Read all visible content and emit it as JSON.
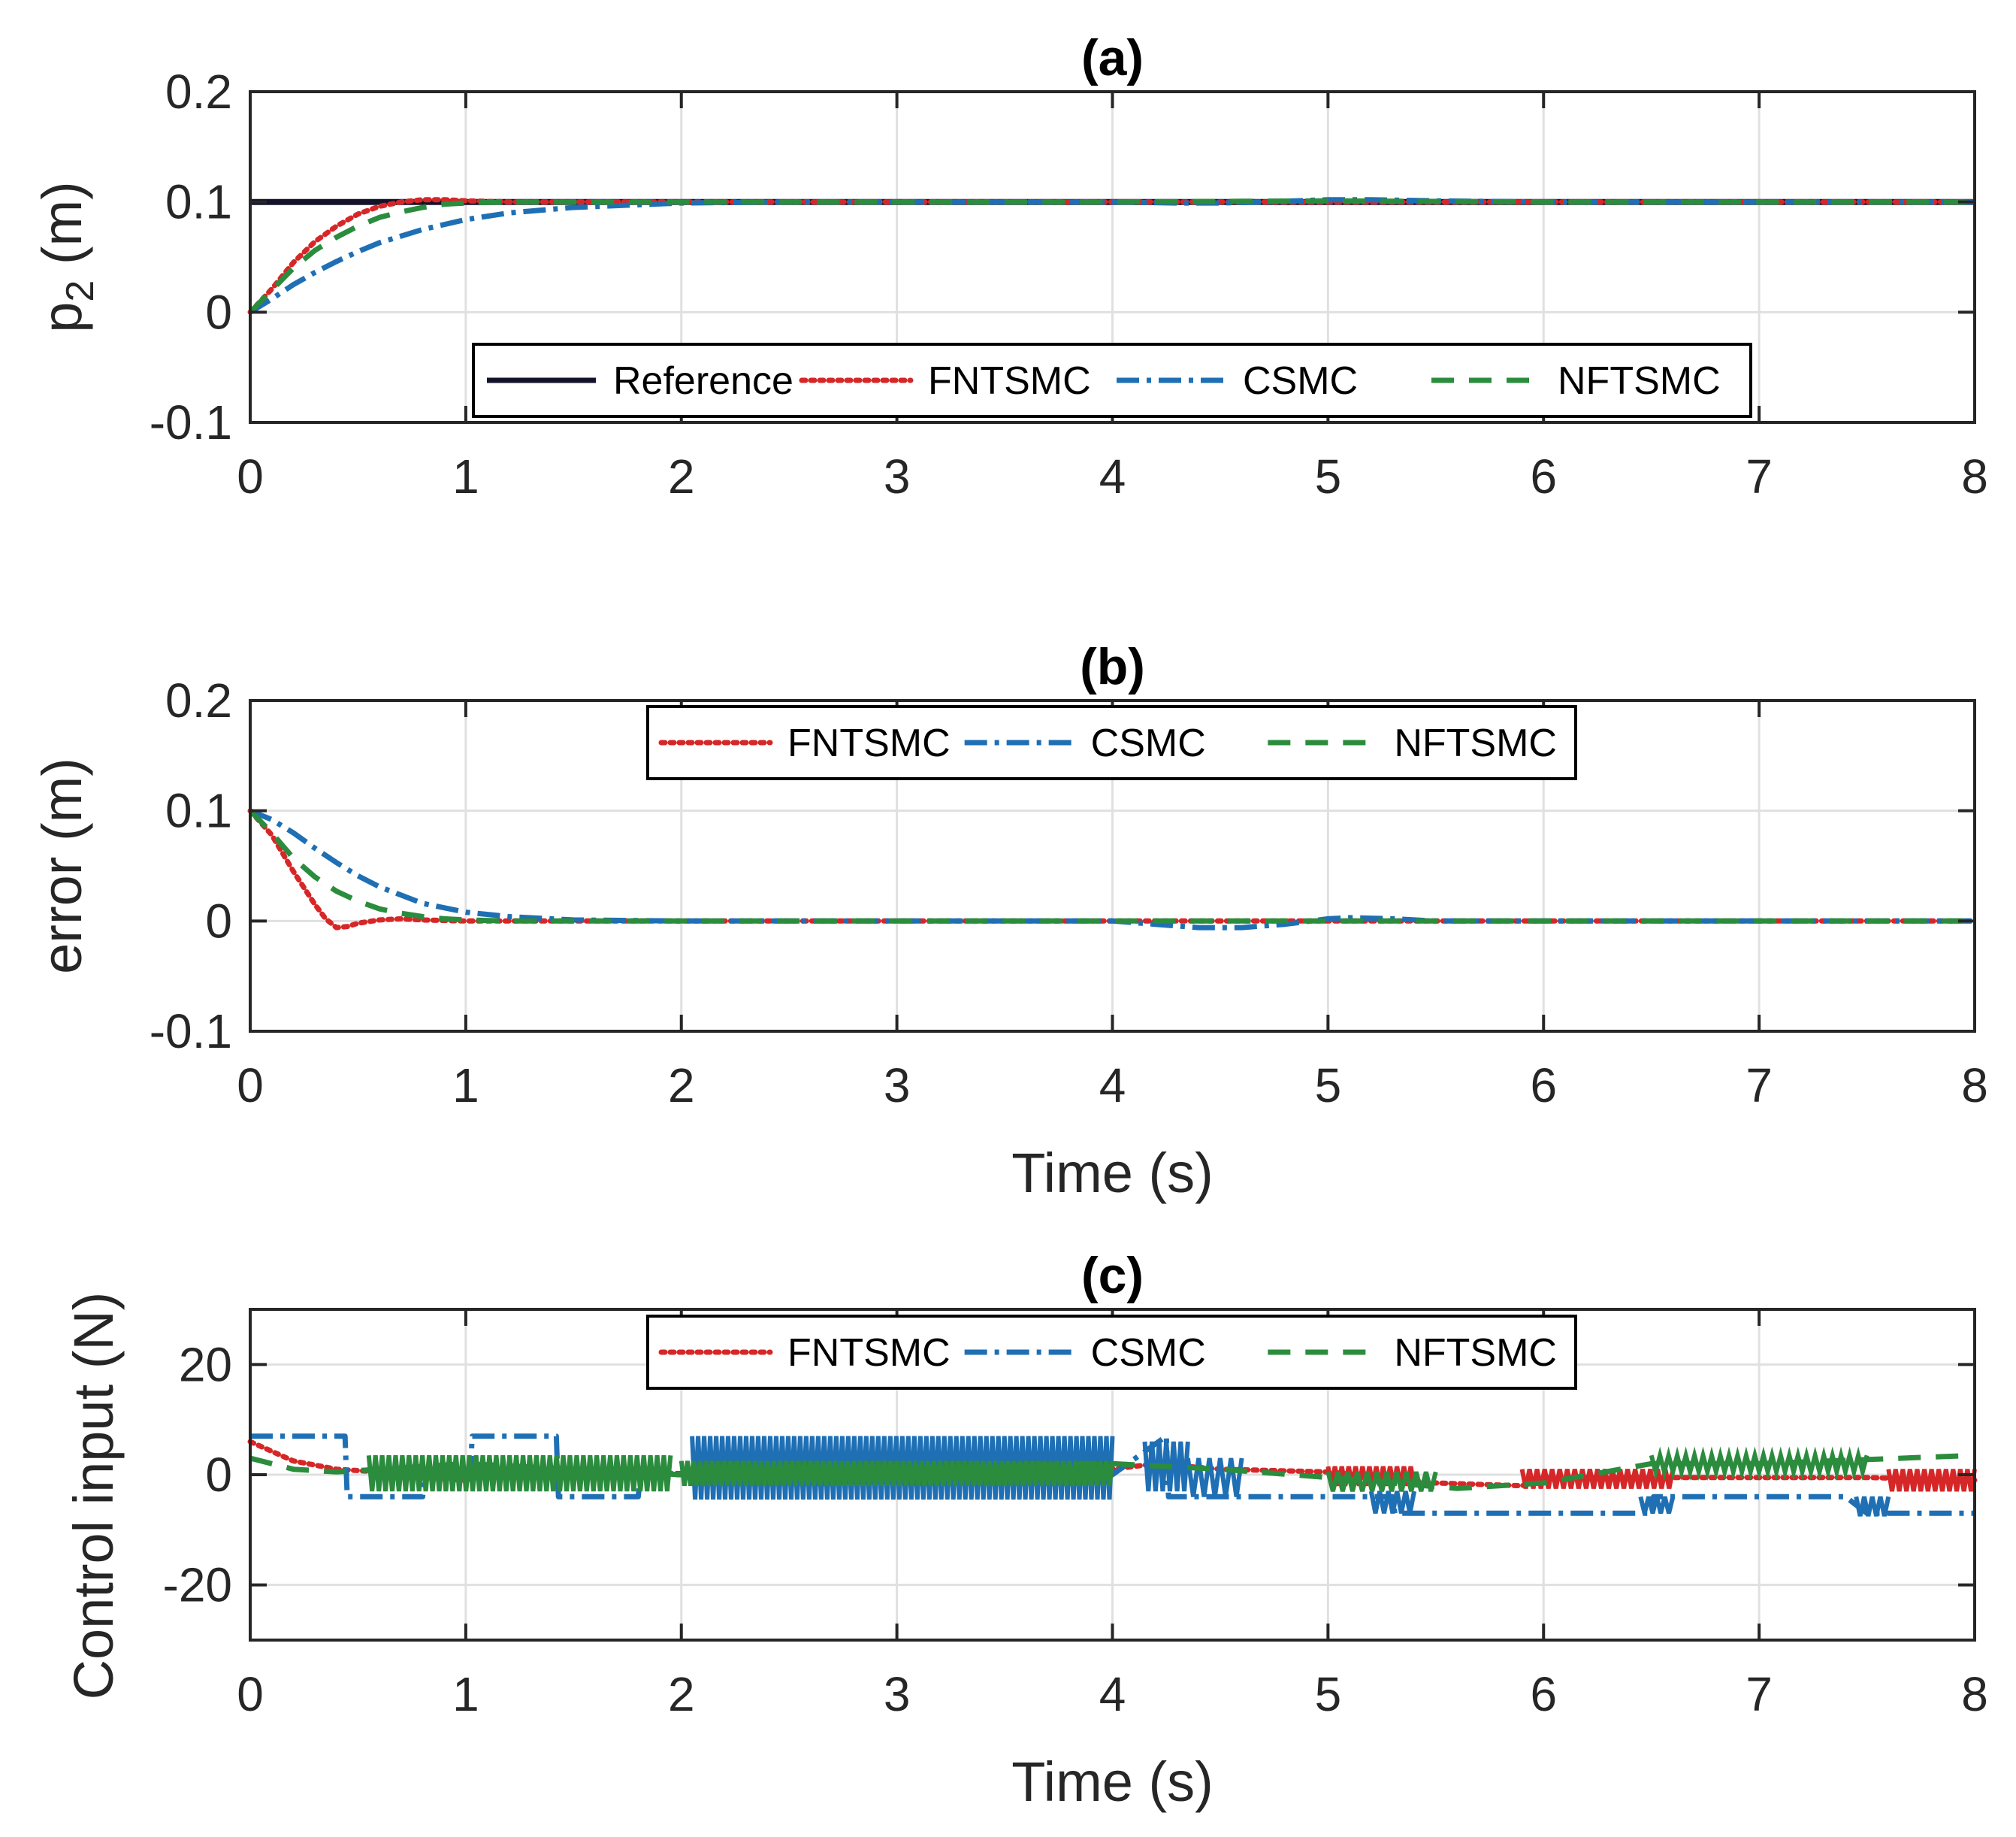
{
  "colors": {
    "reference": "#12122a",
    "fntsmc": "#d62728",
    "csmc": "#1f6fb4",
    "nftsmc": "#2b8c3e",
    "grid": "#e0e0e0",
    "axis": "#262626"
  },
  "chart_data": [
    {
      "type": "line",
      "title": "(a)",
      "xlabel": "",
      "ylabel": "p₂ (m)",
      "ylabel_base": "p",
      "ylabel_sub": "2",
      "ylabel_unit": " (m)",
      "xlim": [
        0,
        8
      ],
      "ylim": [
        -0.1,
        0.2
      ],
      "xticks": [
        0,
        1,
        2,
        3,
        4,
        5,
        6,
        7,
        8
      ],
      "xtick_labels": [
        "0",
        "1",
        "2",
        "3",
        "4",
        "5",
        "6",
        "7",
        "8"
      ],
      "yticks": [
        -0.1,
        0,
        0.1,
        0.2
      ],
      "ytick_labels": [
        "-0.1",
        "0",
        "0.1",
        "0.2"
      ],
      "grid": true,
      "legend": {
        "placement": "bottom-center",
        "entries": [
          "Reference",
          "FNTSMC",
          "CSMC",
          "NFTSMC"
        ]
      },
      "series": [
        {
          "name": "Reference",
          "style": "solid",
          "x": [
            0,
            8
          ],
          "y": [
            0.1,
            0.1
          ]
        },
        {
          "name": "FNTSMC",
          "style": "dotted",
          "x": [
            0,
            0.1,
            0.2,
            0.3,
            0.4,
            0.5,
            0.6,
            0.7,
            0.8,
            0.9,
            1.0,
            1.2,
            1.5,
            2,
            3,
            4,
            5,
            6,
            7,
            8
          ],
          "y": [
            0,
            0.021,
            0.045,
            0.064,
            0.078,
            0.089,
            0.096,
            0.1,
            0.102,
            0.102,
            0.101,
            0.1,
            0.1,
            0.1,
            0.1,
            0.1,
            0.1,
            0.1,
            0.1,
            0.1
          ]
        },
        {
          "name": "CSMC",
          "style": "dashdot",
          "x": [
            0,
            0.1,
            0.2,
            0.3,
            0.4,
            0.5,
            0.6,
            0.8,
            1.0,
            1.2,
            1.5,
            2.0,
            2.5,
            3,
            4,
            4.3,
            4.5,
            4.7,
            5.0,
            5.2,
            5.5,
            6,
            7,
            8
          ],
          "y": [
            0,
            0.012,
            0.025,
            0.036,
            0.046,
            0.055,
            0.063,
            0.075,
            0.084,
            0.09,
            0.095,
            0.099,
            0.1,
            0.1,
            0.1,
            0.099,
            0.099,
            0.1,
            0.102,
            0.102,
            0.101,
            0.1,
            0.1,
            0.1
          ]
        },
        {
          "name": "NFTSMC",
          "style": "dashed",
          "x": [
            0,
            0.1,
            0.2,
            0.3,
            0.4,
            0.5,
            0.6,
            0.7,
            0.8,
            0.9,
            1.0,
            1.2,
            1.5,
            2,
            3,
            4,
            5,
            6,
            7,
            8
          ],
          "y": [
            0,
            0.02,
            0.04,
            0.056,
            0.068,
            0.078,
            0.086,
            0.091,
            0.095,
            0.098,
            0.099,
            0.1,
            0.1,
            0.1,
            0.1,
            0.1,
            0.101,
            0.1,
            0.1,
            0.1
          ]
        }
      ]
    },
    {
      "type": "line",
      "title": "(b)",
      "xlabel": "Time (s)",
      "ylabel": "error (m)",
      "xlim": [
        0,
        8
      ],
      "ylim": [
        -0.1,
        0.2
      ],
      "xticks": [
        0,
        1,
        2,
        3,
        4,
        5,
        6,
        7,
        8
      ],
      "xtick_labels": [
        "0",
        "1",
        "2",
        "3",
        "4",
        "5",
        "6",
        "7",
        "8"
      ],
      "yticks": [
        -0.1,
        0,
        0.1,
        0.2
      ],
      "ytick_labels": [
        "-0.1",
        "0",
        "0.1",
        "0.2"
      ],
      "grid": true,
      "legend": {
        "placement": "top-center",
        "entries": [
          "FNTSMC",
          "CSMC",
          "NFTSMC"
        ]
      },
      "series": [
        {
          "name": "FNTSMC",
          "style": "dotted",
          "x": [
            0,
            0.1,
            0.2,
            0.3,
            0.35,
            0.4,
            0.45,
            0.5,
            0.6,
            0.7,
            0.8,
            1.0,
            1.5,
            2,
            3,
            4,
            5,
            6,
            7,
            8
          ],
          "y": [
            0.1,
            0.078,
            0.045,
            0.015,
            0.002,
            -0.006,
            -0.005,
            -0.002,
            0.001,
            0.002,
            0.001,
            0,
            0,
            0,
            0,
            0,
            0,
            0,
            0,
            0
          ]
        },
        {
          "name": "CSMC",
          "style": "dashdot",
          "x": [
            0,
            0.1,
            0.2,
            0.3,
            0.4,
            0.5,
            0.6,
            0.8,
            1.0,
            1.2,
            1.5,
            2.0,
            3,
            4.0,
            4.2,
            4.4,
            4.6,
            4.8,
            5.0,
            5.1,
            5.3,
            5.5,
            6,
            7,
            8
          ],
          "y": [
            0.1,
            0.092,
            0.08,
            0.066,
            0.053,
            0.041,
            0.031,
            0.016,
            0.008,
            0.004,
            0.001,
            0,
            0,
            0,
            -0.003,
            -0.006,
            -0.006,
            -0.003,
            0.002,
            0.003,
            0.002,
            0,
            0,
            0,
            0
          ]
        },
        {
          "name": "NFTSMC",
          "style": "dashed",
          "x": [
            0,
            0.1,
            0.2,
            0.3,
            0.4,
            0.5,
            0.6,
            0.7,
            0.8,
            0.9,
            1.0,
            1.2,
            1.5,
            2,
            3,
            4,
            5,
            6,
            7,
            8
          ],
          "y": [
            0.1,
            0.08,
            0.057,
            0.04,
            0.027,
            0.018,
            0.011,
            0.007,
            0.004,
            0.002,
            0.001,
            0,
            0,
            0,
            0,
            0,
            0,
            0,
            0,
            0
          ]
        }
      ]
    },
    {
      "type": "line",
      "title": "(c)",
      "xlabel": "Time (s)",
      "ylabel": "Control input (N)",
      "xlim": [
        0,
        8
      ],
      "ylim": [
        -30,
        30
      ],
      "xticks": [
        0,
        1,
        2,
        3,
        4,
        5,
        6,
        7,
        8
      ],
      "xtick_labels": [
        "0",
        "1",
        "2",
        "3",
        "4",
        "5",
        "6",
        "7",
        "8"
      ],
      "yticks": [
        -20,
        0,
        20
      ],
      "ytick_labels": [
        "-20",
        "0",
        "20"
      ],
      "grid": true,
      "legend": {
        "placement": "top-center",
        "entries": [
          "FNTSMC",
          "CSMC",
          "NFTSMC"
        ]
      },
      "series": [
        {
          "name": "FNTSMC",
          "style": "dotted",
          "x": [
            0,
            0.2,
            0.4,
            0.6,
            0.8,
            1.0,
            1.2,
            1.5,
            2.0,
            2.5,
            3.0,
            3.5,
            4.0,
            4.2,
            4.5,
            5.0,
            5.5,
            5.9,
            6.0,
            6.5,
            7.0,
            7.5,
            8
          ],
          "y": [
            6,
            2.5,
            1.0,
            0.5,
            -0.5,
            -1.0,
            0.5,
            0.5,
            0.2,
            0,
            0.5,
            0.5,
            1.0,
            2.0,
            1.0,
            0.5,
            -1.5,
            -2.0,
            -0.5,
            -0.5,
            -0.5,
            -0.5,
            -1.0
          ],
          "chatter": [
            {
              "t0": 5.0,
              "t1": 5.4,
              "lo": -2.0,
              "hi": 1.5,
              "n": 25
            },
            {
              "t0": 5.9,
              "t1": 6.6,
              "lo": -2.5,
              "hi": 1.0,
              "n": 40
            },
            {
              "t0": 7.6,
              "t1": 8.0,
              "lo": -3.0,
              "hi": 1.0,
              "n": 24
            }
          ]
        },
        {
          "name": "CSMC",
          "style": "dashdot",
          "x": [
            0,
            0.27,
            0.28,
            0.44,
            0.45,
            0.8,
            0.81,
            1.02,
            1.03,
            1.42,
            1.43,
            1.8,
            1.81,
            2.0,
            4.0,
            4.25,
            4.26,
            4.45,
            4.46,
            5.0,
            5.3,
            5.31,
            6.5,
            6.51,
            7.4,
            7.5,
            8
          ],
          "y": [
            7,
            7,
            7,
            7,
            -4,
            -4,
            0,
            0,
            7,
            7,
            -4,
            -4,
            0,
            0,
            0,
            7,
            -4,
            -4,
            -4,
            -4,
            -4,
            -7,
            -7,
            -4,
            -4,
            -7,
            -7
          ],
          "chatter": [
            {
              "t0": 2.05,
              "t1": 4.0,
              "lo": -4.5,
              "hi": 7.0,
              "n": 140
            },
            {
              "t0": 4.15,
              "t1": 4.35,
              "lo": -3.0,
              "hi": 6.0,
              "n": 12
            },
            {
              "t0": 4.35,
              "t1": 4.6,
              "lo": -4.0,
              "hi": 3.0,
              "n": 10
            },
            {
              "t0": 5.2,
              "t1": 5.4,
              "lo": -7.0,
              "hi": -3.0,
              "n": 10
            },
            {
              "t0": 6.45,
              "t1": 6.6,
              "lo": -7.0,
              "hi": -4.0,
              "n": 8
            },
            {
              "t0": 7.45,
              "t1": 7.6,
              "lo": -7.5,
              "hi": -4.0,
              "n": 8
            }
          ]
        },
        {
          "name": "NFTSMC",
          "style": "dashed",
          "x": [
            0,
            0.2,
            0.4,
            0.6,
            0.8,
            1.0,
            2.0,
            3.0,
            4.0,
            4.5,
            5.0,
            5.6,
            6.0,
            6.5,
            7.0,
            8
          ],
          "y": [
            3,
            1.0,
            0.5,
            1.0,
            1.5,
            2.0,
            0,
            1.0,
            2.0,
            1.0,
            -0.5,
            -2.5,
            -1.5,
            2.0,
            2.0,
            3.5
          ],
          "chatter": [
            {
              "t0": 0.55,
              "t1": 1.95,
              "lo": -3.0,
              "hi": 3.5,
              "n": 90
            },
            {
              "t0": 2.0,
              "t1": 4.0,
              "lo": -2.0,
              "hi": 2.5,
              "n": 140
            },
            {
              "t0": 5.0,
              "t1": 5.5,
              "lo": -3.0,
              "hi": 0.5,
              "n": 22
            },
            {
              "t0": 6.5,
              "t1": 7.5,
              "lo": 0.5,
              "hi": 3.5,
              "n": 50
            }
          ]
        }
      ]
    }
  ]
}
